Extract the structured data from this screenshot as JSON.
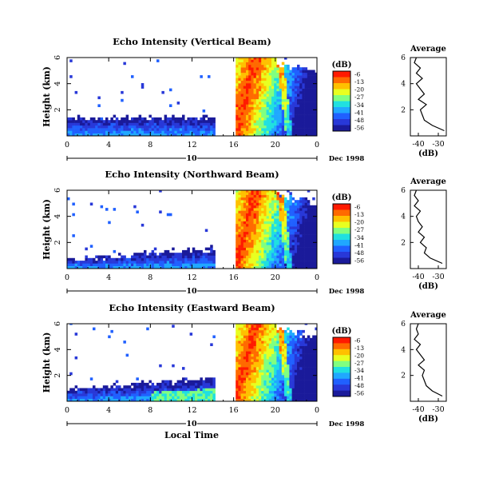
{
  "figure": {
    "xlabel_common": "Local Time",
    "date_label": "Dec 1998",
    "colorbar_unit": "(dB)",
    "colorbar_ticks": [
      "-6",
      "-13",
      "-20",
      "-27",
      "-34",
      "-41",
      "-48",
      "-56"
    ],
    "colorbar_colors": [
      "#ff1a00",
      "#ff6a00",
      "#ffc000",
      "#e8ff20",
      "#80ff80",
      "#20e0e0",
      "#20a8ff",
      "#2060ff",
      "#2838d8",
      "#1a1a9a"
    ]
  },
  "chart_data": [
    {
      "type": "heatmap",
      "title": "Echo Intensity (Vertical Beam)",
      "ylabel": "Height (km)",
      "x_ticks": [
        "0",
        "4",
        "8",
        "12",
        "16",
        "20",
        "0"
      ],
      "x_ticks_values": [
        0,
        4,
        8,
        12,
        16,
        20,
        24
      ],
      "y_ticks": [
        "2",
        "4",
        "6"
      ],
      "y_ticks_values": [
        2,
        4,
        6
      ],
      "xlim": [
        0,
        24
      ],
      "ylim": [
        0,
        6
      ],
      "day_marker": "10",
      "colorbar_range_db": [
        -56,
        -6
      ],
      "data_gap_hours": [
        14,
        16
      ],
      "profile": {
        "title": "Average",
        "xlabel": "(dB)",
        "x_ticks": [
          "-40",
          "-30"
        ],
        "y_ticks": [
          "2",
          "4",
          "6"
        ],
        "xlim": [
          -44,
          -26
        ],
        "ylim": [
          0,
          6
        ],
        "height_km": [
          0.4,
          0.8,
          1.2,
          1.6,
          2.0,
          2.4,
          2.8,
          3.2,
          3.6,
          4.0,
          4.4,
          4.8,
          5.2,
          5.6,
          6.0
        ],
        "intensity_db": [
          -27,
          -33,
          -37,
          -38,
          -39,
          -36,
          -40,
          -37,
          -39,
          -41,
          -38,
          -41,
          -39,
          -42,
          -41
        ]
      }
    },
    {
      "type": "heatmap",
      "title": "Echo Intensity (Northward Beam)",
      "ylabel": "Height (km)",
      "x_ticks": [
        "0",
        "4",
        "8",
        "12",
        "16",
        "20",
        "0"
      ],
      "x_ticks_values": [
        0,
        4,
        8,
        12,
        16,
        20,
        24
      ],
      "y_ticks": [
        "2",
        "4",
        "6"
      ],
      "y_ticks_values": [
        2,
        4,
        6
      ],
      "xlim": [
        0,
        24
      ],
      "ylim": [
        0,
        6
      ],
      "day_marker": "10",
      "colorbar_range_db": [
        -56,
        -6
      ],
      "data_gap_hours": [
        14,
        16
      ],
      "profile": {
        "title": "Average",
        "xlabel": "(dB)",
        "x_ticks": [
          "-40",
          "-30"
        ],
        "y_ticks": [
          "2",
          "4",
          "6"
        ],
        "xlim": [
          -44,
          -26
        ],
        "ylim": [
          0,
          6
        ],
        "height_km": [
          0.4,
          0.8,
          1.2,
          1.6,
          2.0,
          2.4,
          2.8,
          3.2,
          3.6,
          4.0,
          4.4,
          4.8,
          5.2,
          5.6,
          6.0
        ],
        "intensity_db": [
          -28,
          -34,
          -37,
          -36,
          -39,
          -37,
          -40,
          -38,
          -40,
          -41,
          -39,
          -42,
          -40,
          -42,
          -41
        ]
      }
    },
    {
      "type": "heatmap",
      "title": "Echo Intensity (Eastward Beam)",
      "ylabel": "Height (km)",
      "x_ticks": [
        "0",
        "4",
        "8",
        "12",
        "16",
        "20",
        "0"
      ],
      "x_ticks_values": [
        0,
        4,
        8,
        12,
        16,
        20,
        24
      ],
      "y_ticks": [
        "2",
        "4",
        "6"
      ],
      "y_ticks_values": [
        2,
        4,
        6
      ],
      "xlim": [
        0,
        24
      ],
      "ylim": [
        0,
        6
      ],
      "day_marker": "10",
      "colorbar_range_db": [
        -56,
        -6
      ],
      "data_gap_hours": [
        14,
        16
      ],
      "profile": {
        "title": "Average",
        "xlabel": "(dB)",
        "x_ticks": [
          "-40",
          "-30"
        ],
        "y_ticks": [
          "2",
          "4",
          "6"
        ],
        "xlim": [
          -44,
          -26
        ],
        "ylim": [
          0,
          6
        ],
        "height_km": [
          0.4,
          0.8,
          1.2,
          1.6,
          2.0,
          2.4,
          2.8,
          3.2,
          3.6,
          4.0,
          4.4,
          4.8,
          5.2,
          5.6,
          6.0
        ],
        "intensity_db": [
          -28,
          -33,
          -36,
          -37,
          -38,
          -37,
          -40,
          -37,
          -39,
          -41,
          -39,
          -42,
          -40,
          -41,
          -40
        ]
      }
    }
  ]
}
